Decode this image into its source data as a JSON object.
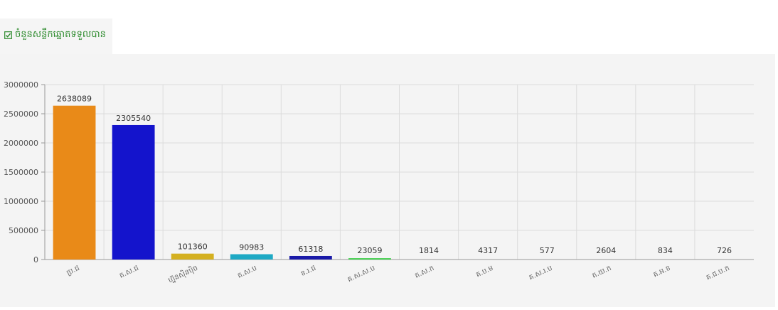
{
  "header": {
    "title": "ចំនួនសន្លឹកឆ្នោតទទួលបាន",
    "icon": "checkbox-checked-icon",
    "title_color": "#2e8b2e"
  },
  "chart_data": {
    "type": "bar",
    "categories": [
      "ប្រ.ជ",
      "គ.ស.ជ",
      "ហ្វ៊ុនស៊ិនប៉ិច",
      "គ.ស.ប",
      "ខ.រ.ជ",
      "គ.ស.ស.ប",
      "គ.ស.ក",
      "គ.ប.ម",
      "គ.ស.រ.ប",
      "គ.យ.ក",
      "គ.អ.ខ",
      "គ.ជ.ប.ក"
    ],
    "values": [
      2638089,
      2305540,
      101360,
      90983,
      61318,
      23059,
      1814,
      4317,
      577,
      2604,
      834,
      726
    ],
    "colors": [
      "#e98a18",
      "#1414cc",
      "#d4b020",
      "#1ea9c4",
      "#1a1aa8",
      "#3ecf4a",
      "#999999",
      "#999999",
      "#999999",
      "#999999",
      "#999999",
      "#999999"
    ],
    "ylim": [
      0,
      3000000
    ],
    "yticks": [
      0,
      500000,
      1000000,
      1500000,
      2000000,
      2500000,
      3000000
    ],
    "grid": true,
    "title": "",
    "xlabel": "",
    "ylabel": ""
  }
}
